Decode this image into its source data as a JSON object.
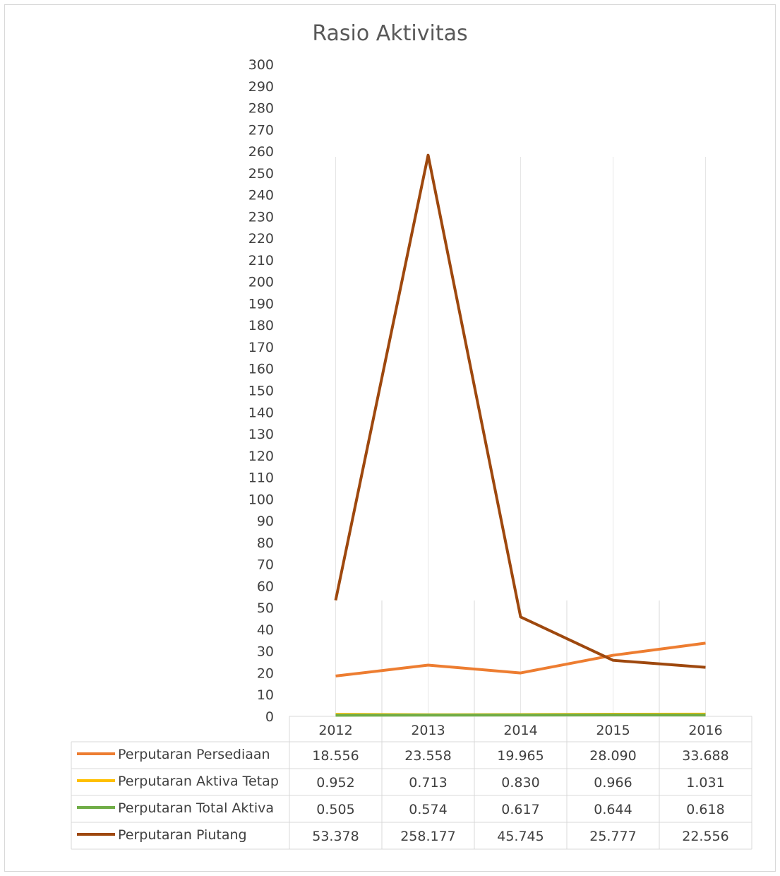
{
  "chart_data": {
    "type": "line",
    "title": "Rasio Aktivitas",
    "categories": [
      "2012",
      "2013",
      "2014",
      "2015",
      "2016"
    ],
    "ylim": [
      0,
      300
    ],
    "ytick_step": 10,
    "grid": "vertical",
    "legend": "data-table",
    "series": [
      {
        "name": "Perputaran Persediaan",
        "color": "#ED7D31",
        "values": [
          18.556,
          23.558,
          19.965,
          28.09,
          33.688
        ],
        "labels": [
          "18.556",
          "23.558",
          "19.965",
          "28.090",
          "33.688"
        ]
      },
      {
        "name": "Perputaran Aktiva Tetap",
        "color": "#FFC000",
        "values": [
          0.952,
          0.713,
          0.83,
          0.966,
          1.031
        ],
        "labels": [
          "0.952",
          "0.713",
          "0.830",
          "0.966",
          "1.031"
        ]
      },
      {
        "name": "Perputaran Total Aktiva",
        "color": "#70AD47",
        "values": [
          0.505,
          0.574,
          0.617,
          0.644,
          0.618
        ],
        "labels": [
          "0.505",
          "0.574",
          "0.617",
          "0.644",
          "0.618"
        ]
      },
      {
        "name": "Perputaran Piutang",
        "color": "#9E480E",
        "values": [
          53.378,
          258.177,
          45.745,
          25.777,
          22.556
        ],
        "labels": [
          "53.378",
          "258.177",
          "45.745",
          "25.777",
          "22.556"
        ]
      }
    ]
  }
}
